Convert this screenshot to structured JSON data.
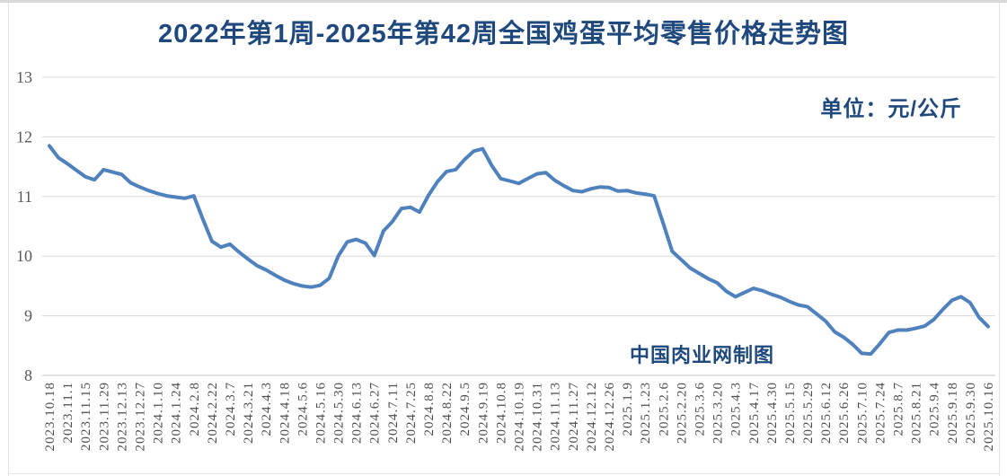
{
  "chart_data": {
    "type": "line",
    "title": "2022年第1周-2025年第42周全国鸡蛋平均零售价格走势图",
    "unit_label": "单位：元/公斤",
    "watermark": "中国肉业网制图",
    "ylim": [
      8,
      13
    ],
    "yticks": [
      8,
      9,
      10,
      11,
      12,
      13
    ],
    "grid": true,
    "legend_position": "none",
    "points_per_label_interval": 2,
    "x_labels": [
      "2023.10.18",
      "2023.11.1",
      "2023.11.15",
      "2023.11.29",
      "2023.12.13",
      "2023.12.27",
      "2024.1.10",
      "2024.1.24",
      "2024.2.8",
      "2024.2.22",
      "2024.3.7",
      "2024.3.21",
      "2024.4.3",
      "2024.4.18",
      "2024.5.6",
      "2024.5.16",
      "2024.5.30",
      "2024.6.13",
      "2024.6.27",
      "2024.7.11",
      "2024.7.25",
      "2024.8.8",
      "2024.8.22",
      "2024.9.5",
      "2024.9.19",
      "2024.10.8",
      "2024.10.19",
      "2024.10.31",
      "2024.11.13",
      "2024.11.27",
      "2024.12.12",
      "2024.12.26",
      "2025.1.9",
      "2025.1.23",
      "2025.2.6",
      "2025.2.20",
      "2025.3.6",
      "2025.3.20",
      "2025.4.3",
      "2025.4.17",
      "2025.4.30",
      "2025.5.15",
      "2025.5.29",
      "2025.6.12",
      "2025.6.26",
      "2025.7.10",
      "2025.7.24",
      "2025.8.7",
      "2025.8.21",
      "2025.9.4",
      "2025.9.18",
      "2025.9.30",
      "2025.10.16"
    ],
    "values": [
      11.85,
      11.65,
      11.55,
      11.44,
      11.33,
      11.28,
      11.45,
      11.41,
      11.37,
      11.23,
      11.16,
      11.1,
      11.05,
      11.01,
      10.99,
      10.97,
      11.01,
      10.62,
      10.25,
      10.15,
      10.2,
      10.07,
      9.95,
      9.84,
      9.77,
      9.68,
      9.6,
      9.54,
      9.5,
      9.48,
      9.51,
      9.63,
      10.0,
      10.24,
      10.28,
      10.22,
      10.01,
      10.42,
      10.58,
      10.8,
      10.82,
      10.74,
      11.02,
      11.25,
      11.42,
      11.45,
      11.62,
      11.76,
      11.8,
      11.52,
      11.3,
      11.26,
      11.22,
      11.3,
      11.38,
      11.4,
      11.27,
      11.18,
      11.1,
      11.08,
      11.13,
      11.16,
      11.15,
      11.09,
      11.1,
      11.06,
      11.04,
      11.01,
      10.55,
      10.08,
      9.94,
      9.8,
      9.71,
      9.62,
      9.55,
      9.41,
      9.32,
      9.39,
      9.46,
      9.42,
      9.36,
      9.31,
      9.24,
      9.18,
      9.15,
      9.03,
      8.91,
      8.73,
      8.64,
      8.52,
      8.37,
      8.36,
      8.53,
      8.72,
      8.76,
      8.76,
      8.79,
      8.83,
      8.94,
      9.11,
      9.26,
      9.32,
      9.22,
      8.97,
      8.82
    ],
    "colors": {
      "line": "#4F81BD",
      "grid": "#D9D9D9",
      "axis_line": "#C6C6C6",
      "y_tick_text": "#595959",
      "x_tick_text": "#4d4d4d",
      "title_text": "#1F497D"
    }
  }
}
